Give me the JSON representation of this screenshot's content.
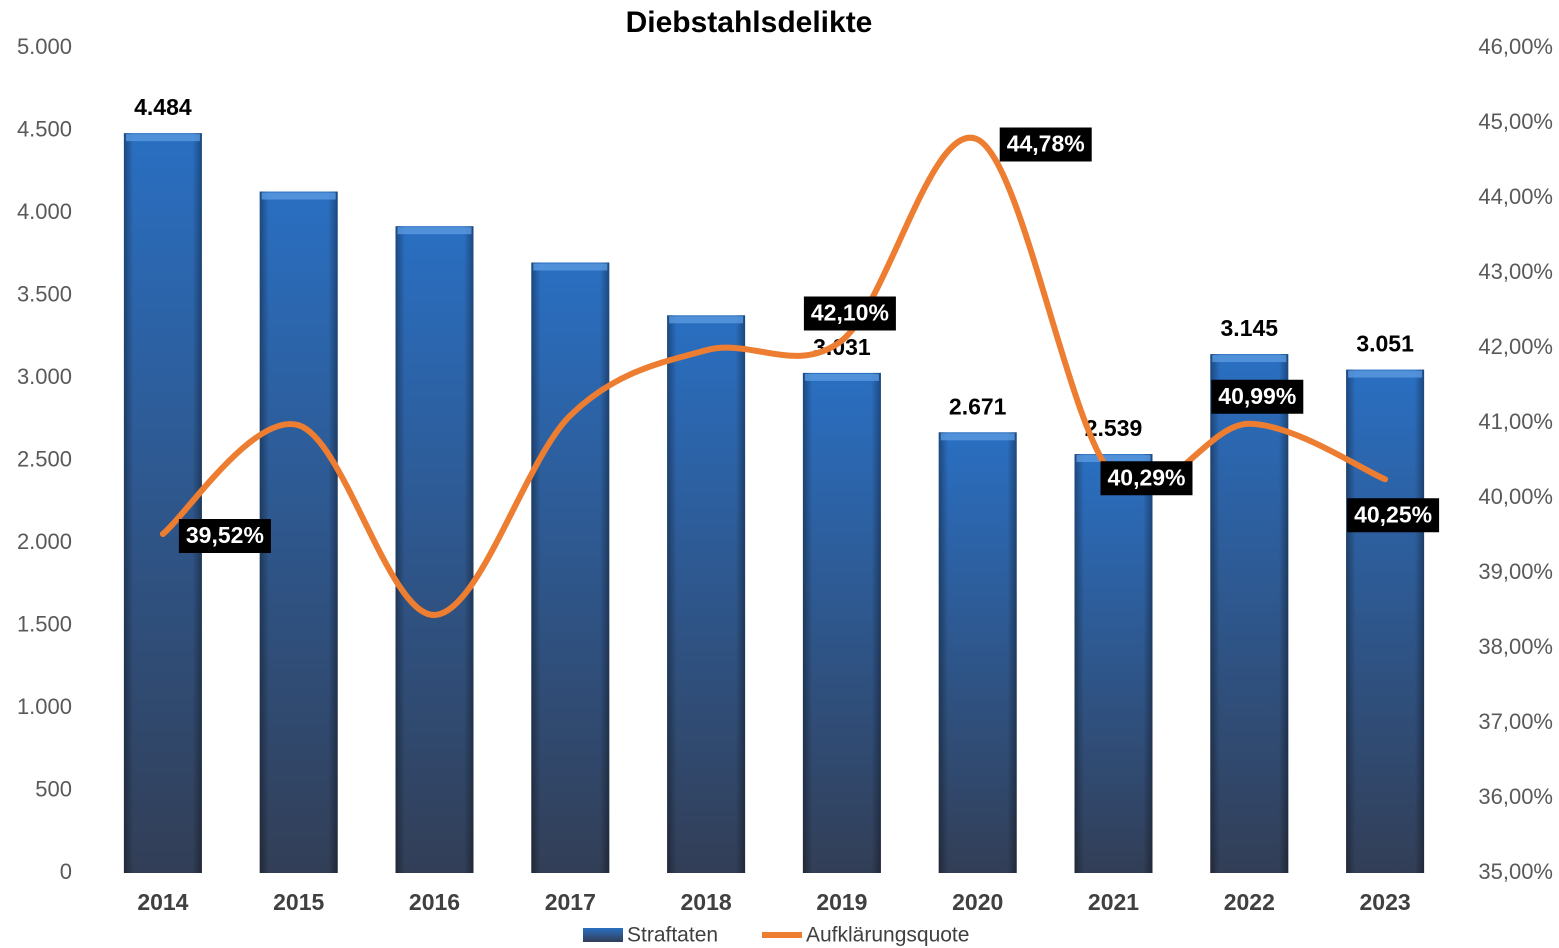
{
  "chart_data": {
    "type": "bar_line",
    "title": "Diebstahlsdelikte",
    "categories": [
      "2014",
      "2015",
      "2016",
      "2017",
      "2018",
      "2019",
      "2020",
      "2021",
      "2022",
      "2023"
    ],
    "series": [
      {
        "name": "Straftaten",
        "type": "bar",
        "color": "#2a6bb8",
        "values": [
          4484,
          4130,
          3920,
          3700,
          3380,
          3031,
          2671,
          2539,
          3145,
          3051
        ],
        "value_labels": [
          "4.484",
          null,
          null,
          null,
          null,
          "3.031",
          "2.671",
          "2.539",
          "3.145",
          "3.051"
        ]
      },
      {
        "name": "Aufklärungsquote",
        "type": "line",
        "axis": "y2",
        "color": "#ed7d31",
        "values": [
          39.52,
          40.97,
          38.44,
          41.1,
          41.97,
          42.1,
          44.78,
          40.29,
          40.99,
          40.25
        ],
        "value_labels": [
          "39,52%",
          null,
          null,
          null,
          null,
          "42,10%",
          "44,78%",
          "40,29%",
          "40,99%",
          "40,25%"
        ]
      }
    ],
    "ylim": [
      0,
      5000
    ],
    "yticks": [
      0,
      500,
      {
        "value": 1000,
        "label": "1.000"
      },
      {
        "value": 1500,
        "label": "1.500"
      },
      {
        "value": 2000,
        "label": "2.000"
      },
      {
        "value": 2500,
        "label": "2.500"
      },
      {
        "value": 3000,
        "label": "3.000"
      },
      {
        "value": 3500,
        "label": "3.500"
      },
      {
        "value": 4000,
        "label": "4.000"
      },
      {
        "value": 4500,
        "label": "4.500"
      },
      {
        "value": 5000,
        "label": "5.000"
      }
    ],
    "y2lim": [
      35,
      46
    ],
    "y2ticks": [
      {
        "value": 35,
        "label": "35,00%"
      },
      {
        "value": 36,
        "label": "36,00%"
      },
      {
        "value": 37,
        "label": "37,00%"
      },
      {
        "value": 38,
        "label": "38,00%"
      },
      {
        "value": 39,
        "label": "39,00%"
      },
      {
        "value": 40,
        "label": "40,00%"
      },
      {
        "value": 41,
        "label": "41,00%"
      },
      {
        "value": 42,
        "label": "42,00%"
      },
      {
        "value": 43,
        "label": "43,00%"
      },
      {
        "value": 44,
        "label": "44,00%"
      },
      {
        "value": 45,
        "label": "45,00%"
      },
      {
        "value": 46,
        "label": "46,00%"
      }
    ],
    "grid": false,
    "legend": "bottom"
  }
}
